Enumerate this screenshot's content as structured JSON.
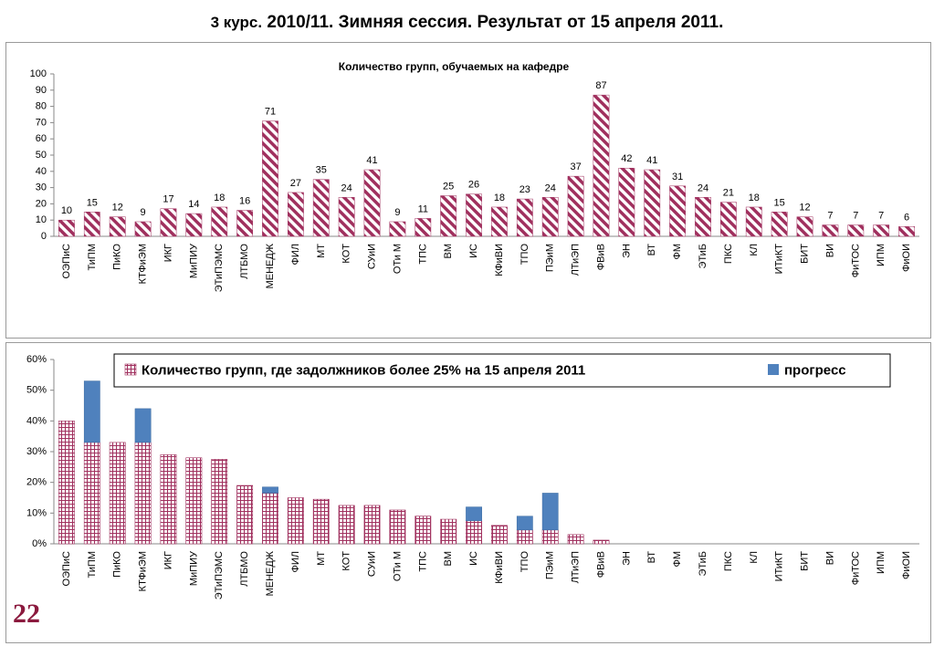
{
  "page": {
    "title_prefix": "3 курс.",
    "title_main": "2010/11. Зимняя сессия. Результат от 15 апреля 2011.",
    "slide_number": "22"
  },
  "colors": {
    "bar_stripe": "#a0305e",
    "grid_fill": "#a0305e",
    "progress": "#4f81bd",
    "axis": "#888888"
  },
  "chart_data": [
    {
      "type": "bar",
      "title": "Количество групп, обучаемых на кафедре",
      "categories": [
        "ОЭПиС",
        "ТиПМ",
        "ПиКО",
        "КТФиЭМ",
        "ИКГ",
        "МиПИУ",
        "ЭТиПЭМС",
        "ЛТБМО",
        "МЕНЕДЖ",
        "ФИЛ",
        "МТ",
        "КОТ",
        "СУиИ",
        "ОТи М",
        "ТПС",
        "ВМ",
        "ИС",
        "КФиВИ",
        "ТПО",
        "ПЭиМ",
        "ЛТиЭП",
        "ФВиВ",
        "ЭН",
        "ВТ",
        "ФМ",
        "ЭТиБ",
        "ПКС",
        "КЛ",
        "ИТиКТ",
        "БИТ",
        "ВИ",
        "ФиТОС",
        "ИПМ",
        "ФиОИ"
      ],
      "values": [
        10,
        15,
        12,
        9,
        17,
        14,
        18,
        16,
        71,
        27,
        35,
        24,
        41,
        9,
        11,
        25,
        26,
        18,
        23,
        24,
        37,
        87,
        42,
        41,
        31,
        24,
        21,
        18,
        15,
        12,
        7,
        7,
        7,
        6
      ],
      "ylim": [
        0,
        100
      ],
      "yticks": [
        0,
        10,
        20,
        30,
        40,
        50,
        60,
        70,
        80,
        90,
        100
      ],
      "grid": false,
      "data_labels": true
    },
    {
      "type": "bar",
      "stacked": true,
      "categories": [
        "ОЭПиС",
        "ТиПМ",
        "ПиКО",
        "КТФиЭМ",
        "ИКГ",
        "МиПИУ",
        "ЭТиПЭМС",
        "ЛТБМО",
        "МЕНЕДЖ",
        "ФИЛ",
        "МТ",
        "КОТ",
        "СУиИ",
        "ОТи М",
        "ТПС",
        "ВМ",
        "ИС",
        "КФиВИ",
        "ТПО",
        "ПЭиМ",
        "ЛТиЭП",
        "ФВиВ",
        "ЭН",
        "ВТ",
        "ФМ",
        "ЭТиБ",
        "ПКС",
        "КЛ",
        "ИТиКТ",
        "БИТ",
        "ВИ",
        "ФиТОС",
        "ИПМ",
        "ФиОИ"
      ],
      "series": [
        {
          "name": "Количество групп, где задолжников более  25% на 15 апреля 2011",
          "values": [
            40,
            33,
            33,
            33,
            29,
            28,
            27.5,
            19,
            16.5,
            15,
            14.5,
            12.5,
            12.5,
            11,
            9,
            8,
            7.5,
            6,
            4.5,
            4.5,
            3,
            1.2,
            0,
            0,
            0,
            0,
            0,
            0,
            0,
            0,
            0,
            0,
            0,
            0
          ]
        },
        {
          "name": "прогресс",
          "values": [
            0,
            20,
            0,
            11,
            0,
            0,
            0,
            0,
            2,
            0,
            0,
            0,
            0,
            0,
            0,
            0,
            4.5,
            0,
            4.5,
            12,
            0,
            0,
            0,
            0,
            0,
            0,
            0,
            0,
            0,
            0,
            0,
            0,
            0,
            0
          ]
        }
      ],
      "ylim": [
        0,
        60
      ],
      "yticks": [
        "0%",
        "10%",
        "20%",
        "30%",
        "40%",
        "50%",
        "60%"
      ],
      "legend_position": "top",
      "grid": false
    }
  ]
}
